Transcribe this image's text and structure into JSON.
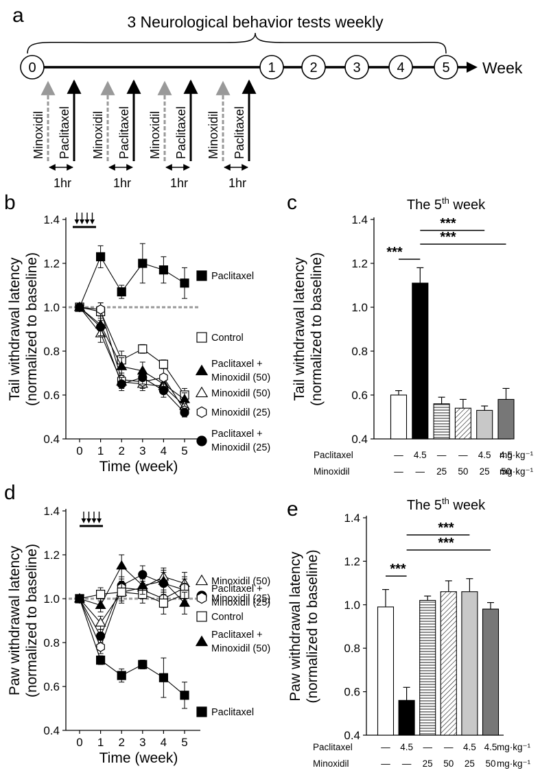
{
  "panel_a": {
    "letter": "a",
    "title": "3 Neurological behavior tests weekly",
    "nodes": [
      "0",
      "1",
      "2",
      "3",
      "4",
      "5"
    ],
    "axis_label": "Week",
    "drug_1": "Minoxidil",
    "drug_2": "Paclitaxel",
    "interval": "1hr",
    "doses": 4
  },
  "panel_b": {
    "letter": "b"
  },
  "panel_c": {
    "letter": "c",
    "title_main": "The 5",
    "title_sup": "th",
    "title_end": " week",
    "sig": [
      "***",
      "***",
      "***"
    ],
    "row1_label": "Paclitaxel",
    "row2_label": "Minoxidil",
    "unit": "mg·kg⁻¹",
    "row1": [
      "—",
      "4.5",
      "—",
      "—",
      "4.5",
      "4.5"
    ],
    "row2": [
      "—",
      "—",
      "25",
      "50",
      "25",
      "50"
    ]
  },
  "panel_d": {
    "letter": "d"
  },
  "panel_e": {
    "letter": "e",
    "title_main": "The 5",
    "title_sup": "th",
    "title_end": " week",
    "sig": [
      "***",
      "***",
      "***"
    ],
    "row1_label": "Paclitaxel",
    "row2_label": "Minoxidil",
    "unit": "mg·kg⁻¹",
    "row1": [
      "—",
      "4.5",
      "—",
      "—",
      "4.5",
      "4.5"
    ],
    "row2": [
      "—",
      "—",
      "25",
      "50",
      "25",
      "50"
    ]
  },
  "chart_data": [
    {
      "id": "b",
      "type": "line",
      "xlabel": "Time (week)",
      "ylabel": "Tail withdrawal latency",
      "ylabel2": "(normalized to baseline)",
      "x": [
        0,
        1,
        2,
        3,
        4,
        5
      ],
      "ylim": [
        0.4,
        1.4
      ],
      "yticks": [
        "0.4",
        "0.6",
        "0.8",
        "1.0",
        "1.2",
        "1.4"
      ],
      "baseline": 1.0,
      "series": [
        {
          "name": "Paclitaxel",
          "marker": "square-filled",
          "values": [
            1.0,
            1.23,
            1.07,
            1.2,
            1.17,
            1.11
          ],
          "err": [
            0,
            0.05,
            0.03,
            0.09,
            0.06,
            0.07
          ]
        },
        {
          "name": "Control",
          "marker": "square-open",
          "values": [
            1.0,
            0.98,
            0.76,
            0.81,
            0.74,
            0.6
          ],
          "err": [
            0,
            0.04,
            0.04,
            0.02,
            0.02,
            0.03
          ]
        },
        {
          "name": "Paclitaxel + Minoxidil (50)",
          "marker": "triangle-filled",
          "values": [
            1.0,
            0.92,
            0.73,
            0.71,
            0.65,
            0.58
          ],
          "err": [
            0,
            0.04,
            0.04,
            0.04,
            0.04,
            0.03
          ]
        },
        {
          "name": "Minoxidil (50)",
          "marker": "triangle-open",
          "values": [
            1.0,
            0.88,
            0.66,
            0.65,
            0.64,
            0.55
          ],
          "err": [
            0,
            0.04,
            0.03,
            0.03,
            0.03,
            0.03
          ]
        },
        {
          "name": "Minoxidil (25)",
          "marker": "hexagon-open",
          "values": [
            1.0,
            0.99,
            0.67,
            0.66,
            0.68,
            0.53
          ],
          "err": [
            0,
            0.03,
            0.03,
            0.03,
            0.04,
            0.03
          ]
        },
        {
          "name": "Paclitaxel + Minoxidil (25)",
          "marker": "circle-filled",
          "values": [
            1.0,
            0.91,
            0.65,
            0.68,
            0.62,
            0.52
          ],
          "err": [
            0,
            0.04,
            0.03,
            0.03,
            0.03,
            0.02
          ]
        }
      ],
      "legend_order": [
        {
          "label": "Paclitaxel",
          "marker": "square-filled"
        },
        {
          "label": "Control",
          "marker": "square-open"
        },
        {
          "label": "Paclitaxel +",
          "label2": "Minoxidil (50)",
          "marker": "triangle-filled"
        },
        {
          "label": "Minoxidil (50)",
          "marker": "triangle-open"
        },
        {
          "label": "Minoxidil (25)",
          "marker": "hexagon-open"
        },
        {
          "label": "Paclitaxel +",
          "label2": "Minoxidil (25)",
          "marker": "circle-filled"
        }
      ]
    },
    {
      "id": "c",
      "type": "bar",
      "ylabel": "Tail withdrawal latency",
      "ylabel2": "(normalized to baseline)",
      "ylim": [
        0.4,
        1.4
      ],
      "yticks": [
        "0.4",
        "0.6",
        "0.8",
        "1.0",
        "1.2",
        "1.4"
      ],
      "categories": [
        "Control",
        "Paclitaxel 4.5",
        "Minoxidil 25",
        "Minoxidil 50",
        "Paclitaxel 4.5 + Minoxidil 25",
        "Paclitaxel 4.5 + Minoxidil 50"
      ],
      "values": [
        0.6,
        1.11,
        0.56,
        0.54,
        0.53,
        0.58
      ],
      "err": [
        0.02,
        0.07,
        0.03,
        0.04,
        0.02,
        0.05
      ],
      "fills": [
        "#ffffff",
        "#000000",
        "hstripe",
        "diag",
        "#c8c8c8",
        "#777777"
      ]
    },
    {
      "id": "d",
      "type": "line",
      "xlabel": "Time (week)",
      "ylabel": "Paw withdrawal latency",
      "ylabel2": "(normalized to baseline)",
      "x": [
        0,
        1,
        2,
        3,
        4,
        5
      ],
      "ylim": [
        0.4,
        1.4
      ],
      "yticks": [
        "0.4",
        "0.6",
        "0.8",
        "1.0",
        "1.2",
        "1.4"
      ],
      "baseline": 1.0,
      "series": [
        {
          "name": "Paclitaxel + Minoxidil (25)",
          "marker": "circle-filled",
          "values": [
            1.0,
            0.83,
            1.06,
            1.11,
            1.07,
            1.04
          ],
          "err": [
            0,
            0.03,
            0.04,
            0.04,
            0.05,
            0.05
          ]
        },
        {
          "name": "Minoxidil (50)",
          "marker": "triangle-open",
          "values": [
            1.0,
            0.89,
            1.03,
            1.05,
            1.1,
            1.07
          ],
          "err": [
            0,
            0.03,
            0.05,
            0.04,
            0.04,
            0.05
          ]
        },
        {
          "name": "Minoxidil (25)",
          "marker": "hexagon-open",
          "values": [
            1.0,
            0.78,
            1.05,
            1.04,
            1.0,
            1.05
          ],
          "err": [
            0,
            0.03,
            0.04,
            0.04,
            0.04,
            0.05
          ]
        },
        {
          "name": "Control",
          "marker": "square-open",
          "values": [
            1.0,
            1.02,
            1.03,
            1.02,
            0.98,
            1.02
          ],
          "err": [
            0,
            0.03,
            0.04,
            0.04,
            0.05,
            0.05
          ]
        },
        {
          "name": "Paclitaxel + Minoxidil (50)",
          "marker": "triangle-filled",
          "values": [
            1.0,
            0.97,
            1.15,
            1.06,
            1.08,
            0.98
          ],
          "err": [
            0,
            0.03,
            0.05,
            0.04,
            0.05,
            0.05
          ]
        },
        {
          "name": "Paclitaxel",
          "marker": "square-filled",
          "values": [
            1.0,
            0.72,
            0.65,
            0.7,
            0.64,
            0.56
          ],
          "err": [
            0,
            0.02,
            0.03,
            0.02,
            0.09,
            0.06
          ]
        }
      ],
      "legend_order": [
        {
          "label": "Paclitaxel +",
          "label2": "Minoxidil (25)",
          "marker": "circle-filled"
        },
        {
          "label": "Minoxidil (50)",
          "marker": "triangle-open"
        },
        {
          "label": "Minoxidil (25)",
          "marker": "hexagon-open"
        },
        {
          "label": "Control",
          "marker": "square-open"
        },
        {
          "label": "Paclitaxel +",
          "label2": "Minoxidil (50)",
          "marker": "triangle-filled"
        },
        {
          "label": "Paclitaxel",
          "marker": "square-filled"
        }
      ]
    },
    {
      "id": "e",
      "type": "bar",
      "ylabel": "Paw withdrawal latency",
      "ylabel2": "(normalized to baseline)",
      "ylim": [
        0.4,
        1.4
      ],
      "yticks": [
        "0.4",
        "0.6",
        "0.8",
        "1.0",
        "1.2",
        "1.4"
      ],
      "categories": [
        "Control",
        "Paclitaxel 4.5",
        "Minoxidil 25",
        "Minoxidil 50",
        "Paclitaxel 4.5 + Minoxidil 25",
        "Paclitaxel 4.5 + Minoxidil 50"
      ],
      "values": [
        0.99,
        0.56,
        1.02,
        1.06,
        1.06,
        0.98
      ],
      "err": [
        0.08,
        0.06,
        0.02,
        0.05,
        0.06,
        0.03
      ],
      "fills": [
        "#ffffff",
        "#000000",
        "hstripe",
        "diag",
        "#c8c8c8",
        "#777777"
      ]
    }
  ]
}
